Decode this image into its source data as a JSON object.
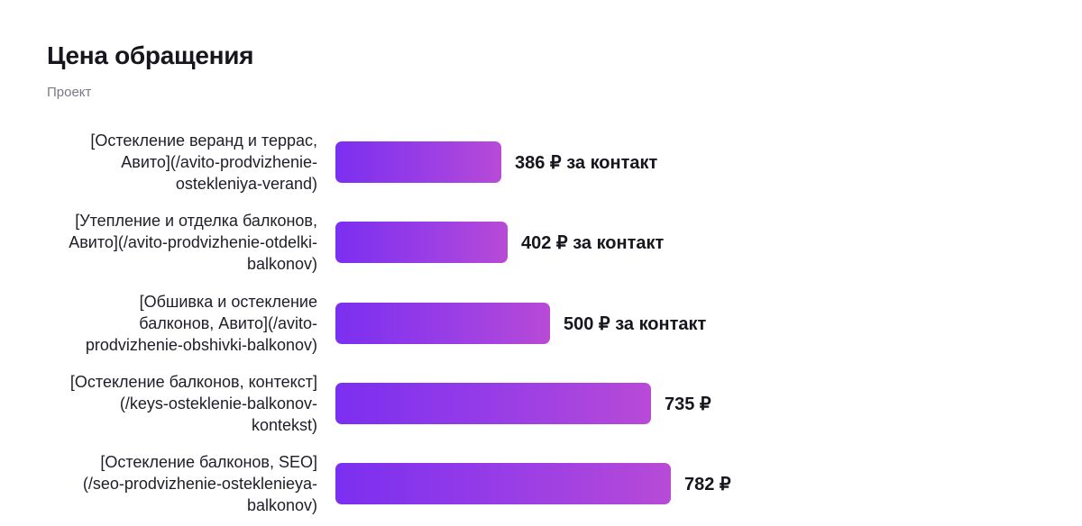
{
  "title": "Цена обращения",
  "subtitle": "Проект",
  "colors": {
    "bar_start": "#7b2ff0",
    "bar_end": "#b84ad6",
    "title": "#16161f",
    "subtitle": "#7a7a85"
  },
  "chart_data": {
    "type": "bar",
    "orientation": "horizontal",
    "title": "Цена обращения",
    "subtitle": "Проект",
    "xlim": [
      0,
      782
    ],
    "grid": false,
    "categories": [
      "[Остекление веранд и террас, Авито](/avito-prodvizhenie-osteklenieya-verand)",
      "[Утепление и отделка балконов, Авито](/avito-prodvizhenie-otdelki-balkonov)",
      "[Обшивка и остекление балконов, Авито](/avito-prodvizhenie-obshivki-balkonov)",
      "[Остекление балконов, контекст](/keys-osteklenie-balkonov-kontekst)",
      "[Остекление балконов, SEO](/seo-prodvizhenie-osteklenieya-balkonov)"
    ],
    "label_lines": [
      [
        "[Остекление веранд и террас,",
        "Авито](/avito-prodvizhenie-",
        "ostekleniya-verand)"
      ],
      [
        "[Утепление и отделка балконов,",
        "Авито](/avito-prodvizhenie-otdelki-",
        "balkonov)"
      ],
      [
        "[Обшивка и остекление",
        "балконов, Авито](/avito-",
        "prodvizhenie-obshivki-balkonov)"
      ],
      [
        "[Остекление балконов, контекст]",
        "(/keys-osteklenie-balkonov-",
        "kontekst)"
      ],
      [
        "[Остекление балконов, SEO]",
        "(/seo-prodvizhenie-osteklenieya-",
        "balkonov)"
      ]
    ],
    "values": [
      386,
      402,
      500,
      735,
      782
    ],
    "value_labels": [
      "386 ₽ за контакт",
      "402 ₽ за контакт",
      "500 ₽ за контакт",
      "735 ₽",
      "782 ₽"
    ]
  }
}
